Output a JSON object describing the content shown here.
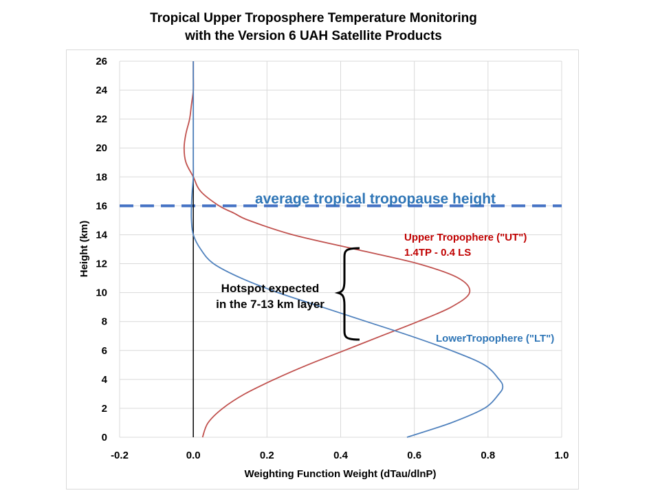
{
  "title": {
    "line1": "Tropical Upper Troposphere Temperature Monitoring",
    "line2": "with the Version 6 UAH Satellite Products"
  },
  "chart_data": {
    "type": "line",
    "title": "Tropical Upper Troposphere Temperature Monitoring with the Version 6 UAH Satellite Products",
    "xlabel": "Weighting Function Weight (dTau/dlnP)",
    "ylabel": "Height (km)",
    "xlim": [
      -0.2,
      1.0
    ],
    "ylim": [
      0,
      26
    ],
    "x_ticks": [
      "-0.2",
      "0.0",
      "0.2",
      "0.4",
      "0.6",
      "0.8",
      "1.0"
    ],
    "y_ticks": [
      "0",
      "2",
      "4",
      "6",
      "8",
      "10",
      "12",
      "14",
      "16",
      "18",
      "20",
      "22",
      "24",
      "26"
    ],
    "grid": true,
    "series": [
      {
        "name": "Upper Tropophere (\"UT\")",
        "color": "#c0504d",
        "points": [
          [
            0.025,
            0
          ],
          [
            0.04,
            1
          ],
          [
            0.08,
            2
          ],
          [
            0.14,
            3
          ],
          [
            0.22,
            4
          ],
          [
            0.31,
            5
          ],
          [
            0.41,
            6
          ],
          [
            0.51,
            7
          ],
          [
            0.61,
            8
          ],
          [
            0.7,
            9
          ],
          [
            0.75,
            10
          ],
          [
            0.72,
            11
          ],
          [
            0.61,
            12
          ],
          [
            0.44,
            13
          ],
          [
            0.27,
            14
          ],
          [
            0.15,
            15
          ],
          [
            0.11,
            15.5
          ],
          [
            0.07,
            16
          ],
          [
            0.02,
            17
          ],
          [
            0.0,
            18
          ],
          [
            -0.02,
            19
          ],
          [
            -0.025,
            20
          ],
          [
            -0.02,
            21
          ],
          [
            -0.01,
            22
          ],
          [
            -0.005,
            23
          ],
          [
            0.0,
            24
          ],
          [
            0.0,
            25
          ],
          [
            0.0,
            26
          ]
        ]
      },
      {
        "name": "LowerTropophere (\"LT\")",
        "color": "#4f81bd",
        "points": [
          [
            0.58,
            0
          ],
          [
            0.7,
            1
          ],
          [
            0.79,
            2
          ],
          [
            0.83,
            3
          ],
          [
            0.84,
            3.5
          ],
          [
            0.83,
            4
          ],
          [
            0.79,
            5
          ],
          [
            0.7,
            6
          ],
          [
            0.59,
            7
          ],
          [
            0.47,
            8
          ],
          [
            0.35,
            9
          ],
          [
            0.23,
            10
          ],
          [
            0.13,
            11
          ],
          [
            0.055,
            12
          ],
          [
            0.02,
            13
          ],
          [
            0.0,
            14
          ],
          [
            -0.005,
            15
          ],
          [
            -0.005,
            16
          ],
          [
            -0.003,
            17
          ],
          [
            0.0,
            18
          ],
          [
            0.0,
            19
          ],
          [
            0.0,
            20
          ],
          [
            0.0,
            22
          ],
          [
            0.0,
            24
          ],
          [
            0.0,
            26
          ]
        ]
      }
    ],
    "reference_lines": [
      {
        "axis": "y",
        "value": 16,
        "label": "average tropical tropopause height",
        "style": "dashed",
        "color": "#4472c4"
      },
      {
        "axis": "x",
        "value": 0.0,
        "style": "solid",
        "color": "#000000"
      }
    ],
    "annotations": [
      {
        "text_lines": [
          "Upper Tropophere (\"UT\")",
          "1.4TP - 0.4 LS"
        ],
        "color": "#c00000"
      },
      {
        "text_lines": [
          "LowerTropophere (\"LT\")"
        ],
        "color": "#2e75b6"
      },
      {
        "text_lines": [
          "Hotspot expected",
          "in the 7-13 km layer"
        ],
        "color": "#000000",
        "brace_range": [
          7,
          13
        ]
      }
    ]
  }
}
